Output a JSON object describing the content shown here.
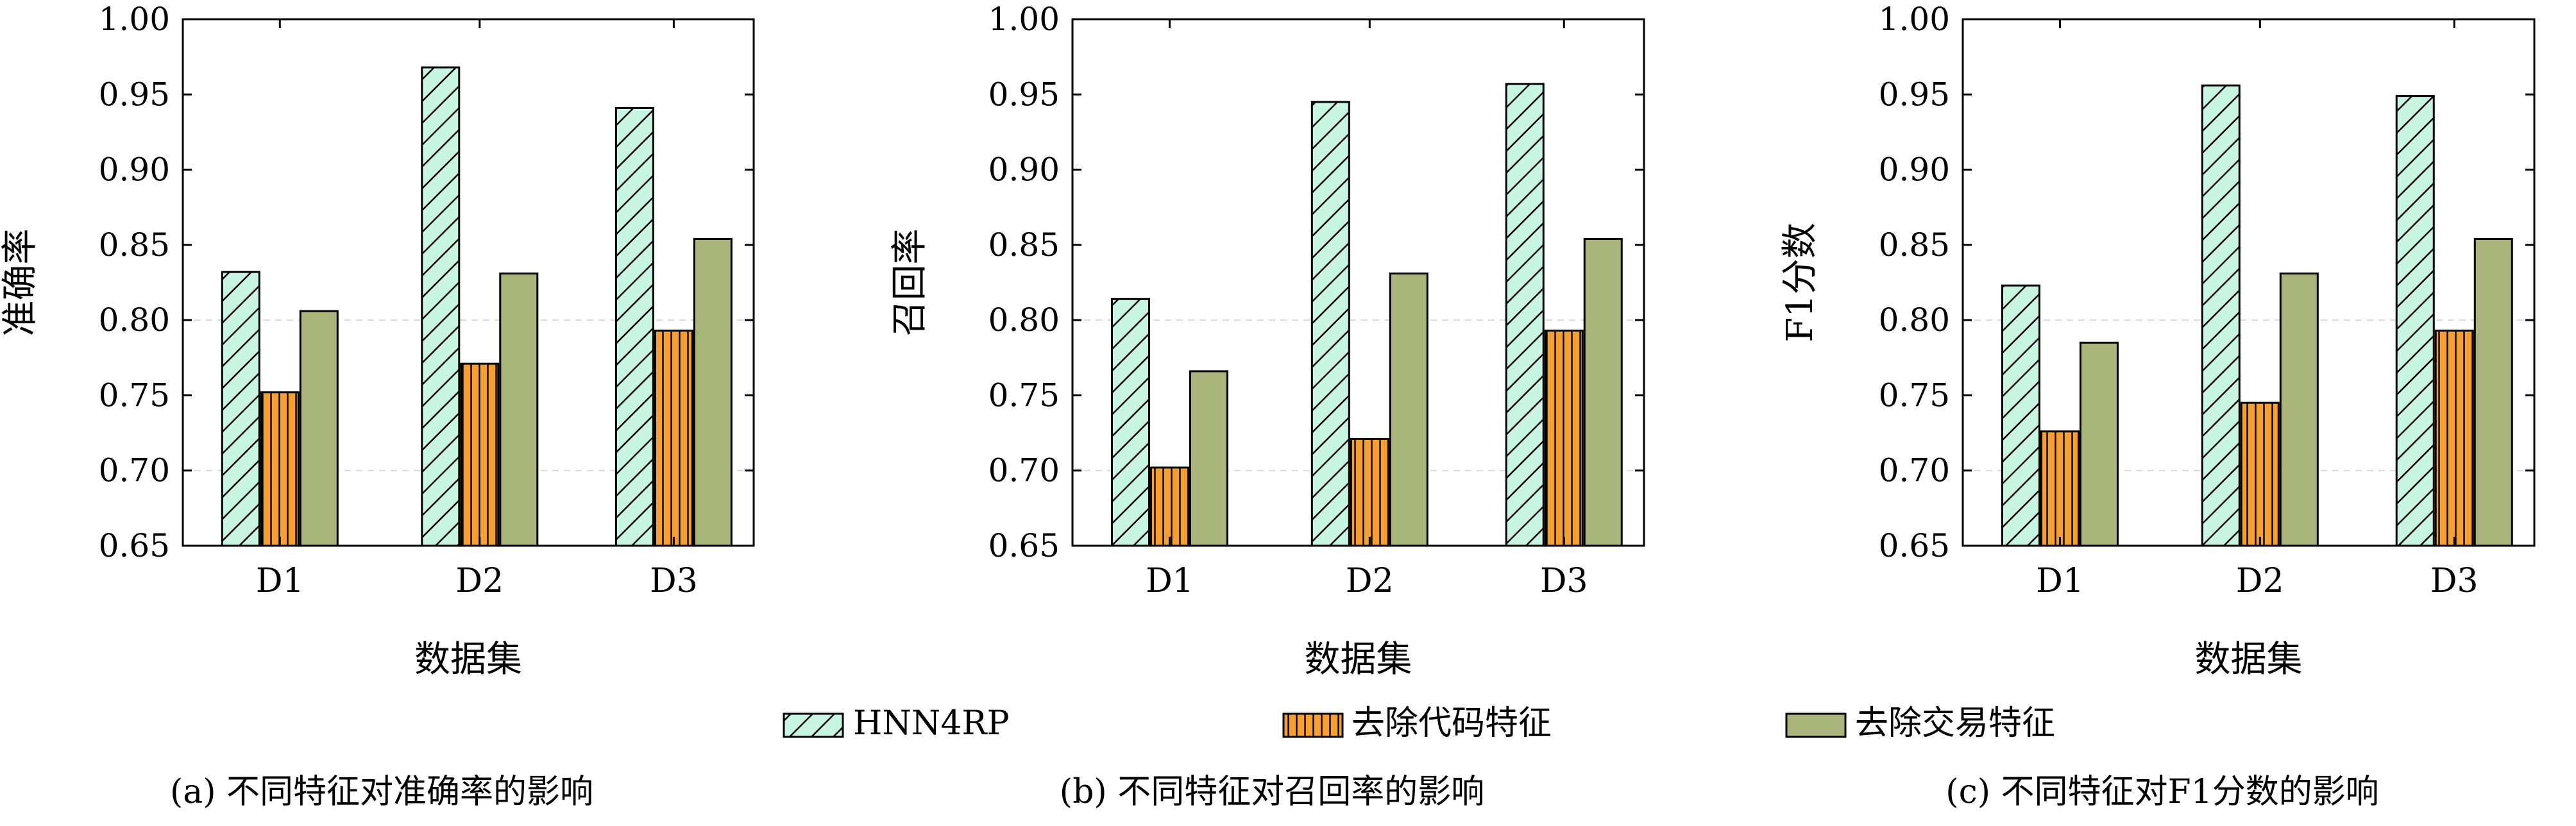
{
  "chart_data": [
    {
      "type": "bar",
      "caption": "(a) 不同特征对准确率的影响",
      "xlabel": "数据集",
      "ylabel": "准确率",
      "categories": [
        "D1",
        "D2",
        "D3"
      ],
      "ylim": [
        0.65,
        1.0
      ],
      "yticks": [
        "0.65",
        "0.70",
        "0.75",
        "0.80",
        "0.85",
        "0.90",
        "0.95",
        "1.00"
      ],
      "series": [
        {
          "name": "HNN4RP",
          "values": [
            0.832,
            0.968,
            0.941
          ]
        },
        {
          "name": "去除代码特征",
          "values": [
            0.752,
            0.771,
            0.793
          ]
        },
        {
          "name": "去除交易特征",
          "values": [
            0.806,
            0.831,
            0.854
          ]
        }
      ]
    },
    {
      "type": "bar",
      "caption": "(b) 不同特征对召回率的影响",
      "xlabel": "数据集",
      "ylabel": "召回率",
      "categories": [
        "D1",
        "D2",
        "D3"
      ],
      "ylim": [
        0.65,
        1.0
      ],
      "yticks": [
        "0.65",
        "0.70",
        "0.75",
        "0.80",
        "0.85",
        "0.90",
        "0.95",
        "1.00"
      ],
      "series": [
        {
          "name": "HNN4RP",
          "values": [
            0.814,
            0.945,
            0.957
          ]
        },
        {
          "name": "去除代码特征",
          "values": [
            0.702,
            0.721,
            0.793
          ]
        },
        {
          "name": "去除交易特征",
          "values": [
            0.766,
            0.831,
            0.854
          ]
        }
      ]
    },
    {
      "type": "bar",
      "caption": "(c) 不同特征对F1分数的影响",
      "xlabel": "数据集",
      "ylabel": "F1分数",
      "categories": [
        "D1",
        "D2",
        "D3"
      ],
      "ylim": [
        0.65,
        1.0
      ],
      "yticks": [
        "0.65",
        "0.70",
        "0.75",
        "0.80",
        "0.85",
        "0.90",
        "0.95",
        "1.00"
      ],
      "series": [
        {
          "name": "HNN4RP",
          "values": [
            0.823,
            0.956,
            0.949
          ]
        },
        {
          "name": "去除代码特征",
          "values": [
            0.726,
            0.745,
            0.793
          ]
        },
        {
          "name": "去除交易特征",
          "values": [
            0.785,
            0.831,
            0.854
          ]
        }
      ]
    }
  ],
  "legend": [
    {
      "label": "HNN4RP",
      "style": "hatched",
      "color": "#c9f5e3"
    },
    {
      "label": "去除代码特征",
      "style": "striped",
      "color": "#f7a030"
    },
    {
      "label": "去除交易特征",
      "style": "solid",
      "color": "#a9b57a"
    }
  ],
  "colors": {
    "HNN4RP": "#c9f5e3",
    "去除代码特征": "#f7a030",
    "去除交易特征": "#a9b57a",
    "grid": "#d9d9d9"
  }
}
